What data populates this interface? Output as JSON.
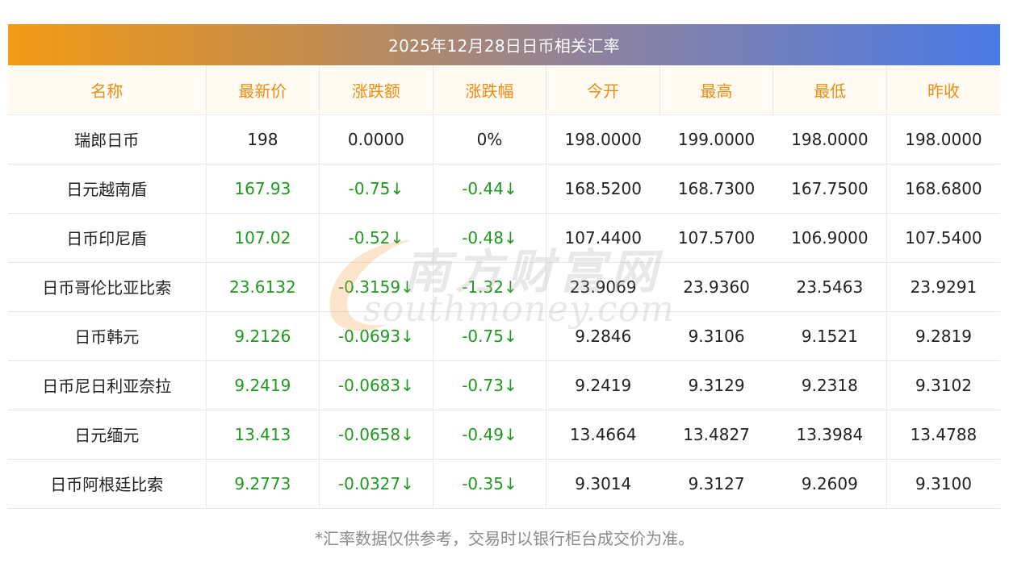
{
  "title": "2025年12月28日日币相关汇率",
  "headers": [
    "名称",
    "最新价",
    "涨跌额",
    "涨跌幅",
    "今开",
    "最高",
    "最低",
    "昨收"
  ],
  "rows": [
    {
      "name": "瑞郎日币",
      "latest": "198",
      "change": "0.0000",
      "pct": "0%",
      "open": "198.0000",
      "high": "199.0000",
      "low": "198.0000",
      "prev": "198.0000",
      "down": false
    },
    {
      "name": "日元越南盾",
      "latest": "167.93",
      "change": "-0.75↓",
      "pct": "-0.44↓",
      "open": "168.5200",
      "high": "168.7300",
      "low": "167.7500",
      "prev": "168.6800",
      "down": true
    },
    {
      "name": "日币印尼盾",
      "latest": "107.02",
      "change": "-0.52↓",
      "pct": "-0.48↓",
      "open": "107.4400",
      "high": "107.5700",
      "low": "106.9000",
      "prev": "107.5400",
      "down": true
    },
    {
      "name": "日币哥伦比亚比索",
      "latest": "23.6132",
      "change": "-0.3159↓",
      "pct": "-1.32↓",
      "open": "23.9069",
      "high": "23.9360",
      "low": "23.5463",
      "prev": "23.9291",
      "down": true
    },
    {
      "name": "日币韩元",
      "latest": "9.2126",
      "change": "-0.0693↓",
      "pct": "-0.75↓",
      "open": "9.2846",
      "high": "9.3106",
      "low": "9.1521",
      "prev": "9.2819",
      "down": true
    },
    {
      "name": "日币尼日利亚奈拉",
      "latest": "9.2419",
      "change": "-0.0683↓",
      "pct": "-0.73↓",
      "open": "9.2419",
      "high": "9.3129",
      "low": "9.2318",
      "prev": "9.3102",
      "down": true
    },
    {
      "name": "日元缅元",
      "latest": "13.413",
      "change": "-0.0658↓",
      "pct": "-0.49↓",
      "open": "13.4664",
      "high": "13.4827",
      "low": "13.3984",
      "prev": "13.4788",
      "down": true
    },
    {
      "name": "日币阿根廷比索",
      "latest": "9.2773",
      "change": "-0.0327↓",
      "pct": "-0.35↓",
      "open": "9.3014",
      "high": "9.3127",
      "low": "9.2609",
      "prev": "9.3100",
      "down": true
    }
  ],
  "footnote": "*汇率数据仅供参考，交易时以银行柜台成交价为准。",
  "watermark": {
    "cn": "南方财富网",
    "en": "southmoney.com"
  },
  "colors": {
    "header_text": "#f08c12",
    "down": "#1e9a1e",
    "banner_start": "#f29a14",
    "banner_end": "#4a7ae6"
  }
}
